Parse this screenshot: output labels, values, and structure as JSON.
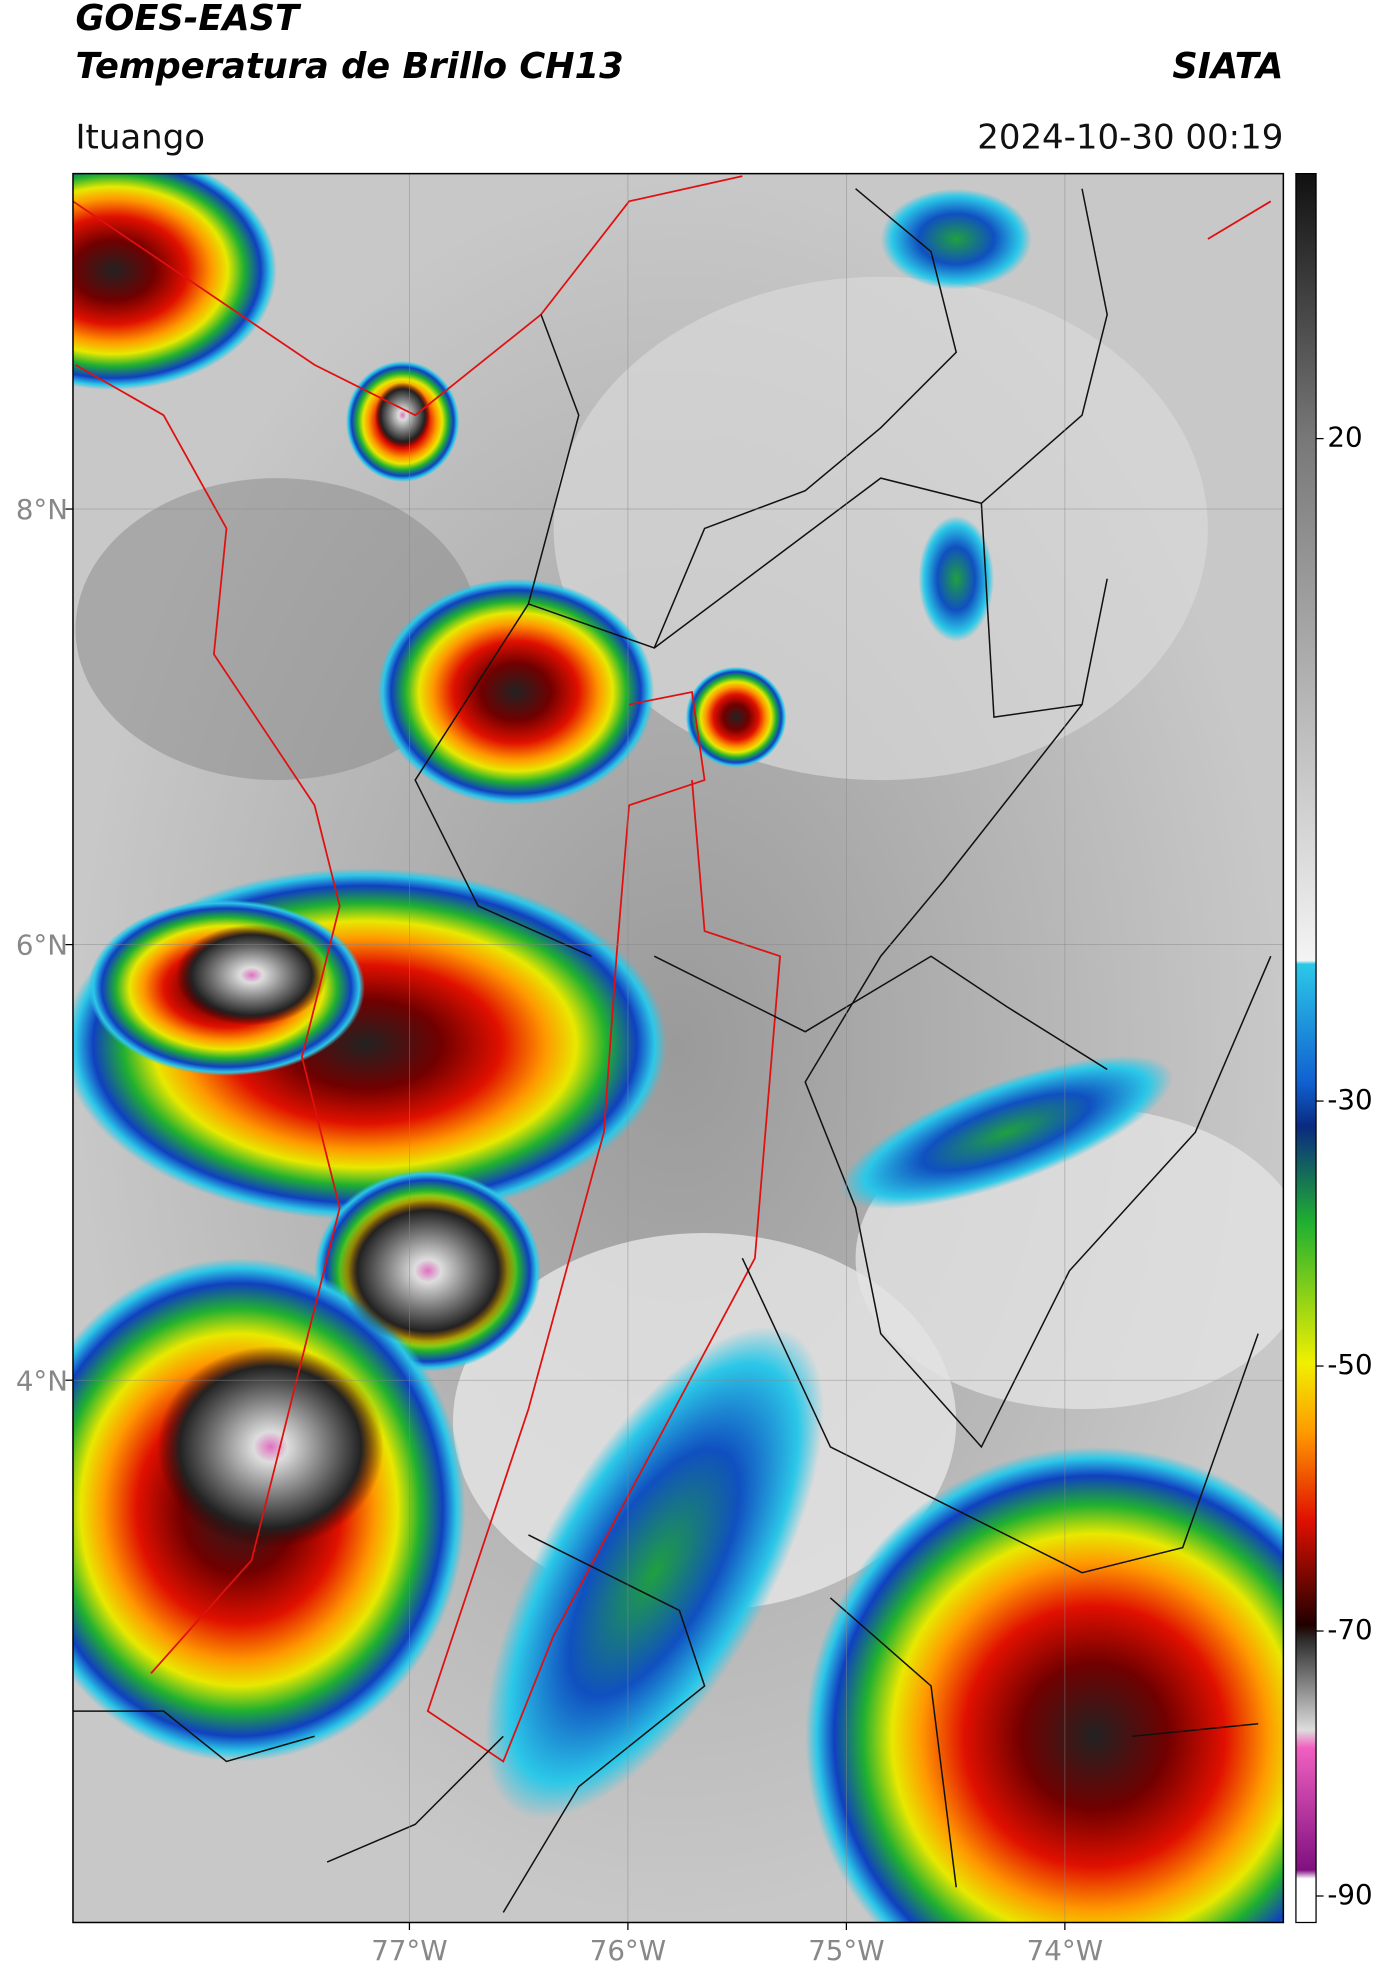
{
  "header": {
    "title": "GOES-EAST",
    "subtitle": "Temperatura de Brillo CH13",
    "agency": "SIATA",
    "location": "Ituango",
    "datetime": "2024-10-30 00:19"
  },
  "map": {
    "xlim": [
      -78.54,
      -73.0
    ],
    "ylim": [
      1.51,
      9.54
    ],
    "xticks": [
      {
        "value": -77,
        "label": "77°W"
      },
      {
        "value": -76,
        "label": "76°W"
      },
      {
        "value": -75,
        "label": "75°W"
      },
      {
        "value": -74,
        "label": "74°W"
      }
    ],
    "yticks": [
      {
        "value": 8,
        "label": "8°N"
      },
      {
        "value": 6,
        "label": "6°N"
      },
      {
        "value": 4,
        "label": "4°N"
      }
    ]
  },
  "colorbar": {
    "lim": [
      -92,
      40
    ],
    "ticks": [
      20,
      -30,
      -50,
      -70,
      -90
    ]
  }
}
